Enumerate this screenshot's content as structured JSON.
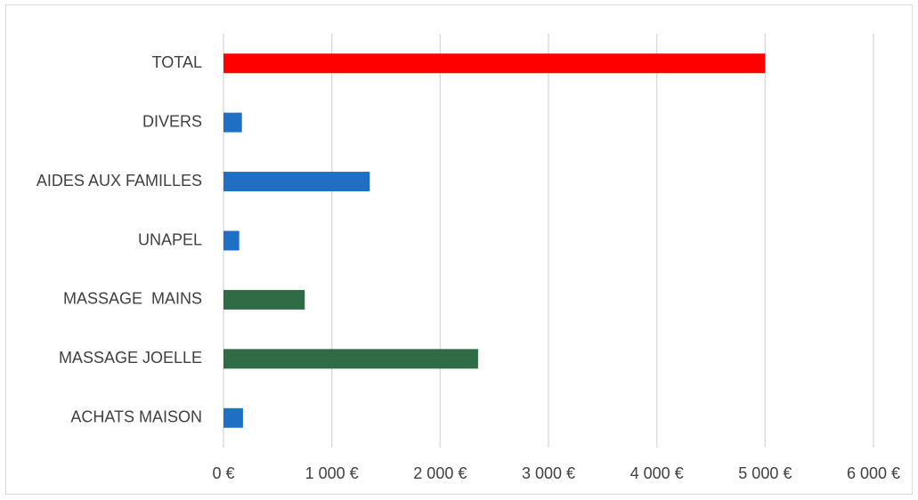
{
  "chart_data": {
    "type": "bar",
    "orientation": "horizontal",
    "categories": [
      "TOTAL",
      "DIVERS",
      "AIDES AUX FAMILLES",
      "UNAPEL",
      "MASSAGE  MAINS",
      "MASSAGE JOELLE",
      "ACHATS MAISON"
    ],
    "values": [
      5000,
      170,
      1350,
      145,
      750,
      2350,
      180
    ],
    "bar_colors": [
      "#ff0000",
      "#1f6fc5",
      "#1f6fc5",
      "#1f6fc5",
      "#2f6b45",
      "#2f6b45",
      "#1f6fc5"
    ],
    "xticks": [
      "0 €",
      "1 000 €",
      "2 000 €",
      "3 000 €",
      "4 000 €",
      "5 000 €",
      "6 000 €"
    ],
    "xlim": [
      0,
      6000
    ],
    "grid": true,
    "legend": "none",
    "title": "",
    "xlabel": "",
    "ylabel": ""
  }
}
